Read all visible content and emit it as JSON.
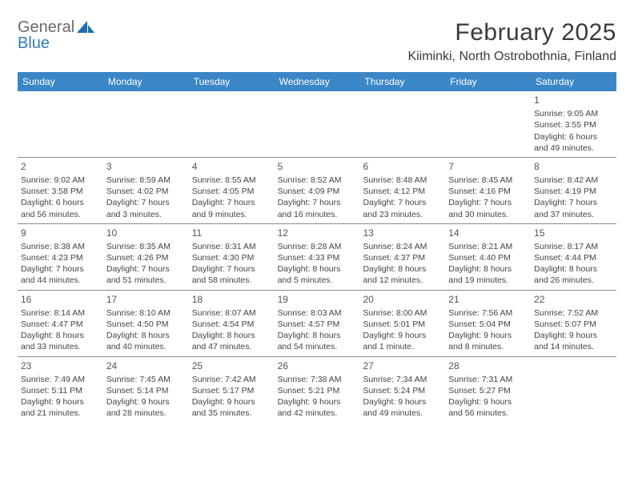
{
  "brand": {
    "word1": "General",
    "word2": "Blue",
    "word1_color": "#6a6a6a",
    "word2_color": "#2f7bbf",
    "sail_color": "#1f6db3"
  },
  "title": "February 2025",
  "location": "Kiiminki, North Ostrobothnia, Finland",
  "colors": {
    "header_bg": "#3b86c6",
    "header_text": "#ffffff",
    "divider": "#8a8a8a",
    "text": "#444444",
    "page_bg": "#ffffff"
  },
  "day_names": [
    "Sunday",
    "Monday",
    "Tuesday",
    "Wednesday",
    "Thursday",
    "Friday",
    "Saturday"
  ],
  "weeks": [
    [
      null,
      null,
      null,
      null,
      null,
      null,
      {
        "n": "1",
        "sr": "9:05 AM",
        "ss": "3:55 PM",
        "dl": "6 hours and 49 minutes."
      }
    ],
    [
      {
        "n": "2",
        "sr": "9:02 AM",
        "ss": "3:58 PM",
        "dl": "6 hours and 56 minutes."
      },
      {
        "n": "3",
        "sr": "8:59 AM",
        "ss": "4:02 PM",
        "dl": "7 hours and 3 minutes."
      },
      {
        "n": "4",
        "sr": "8:55 AM",
        "ss": "4:05 PM",
        "dl": "7 hours and 9 minutes."
      },
      {
        "n": "5",
        "sr": "8:52 AM",
        "ss": "4:09 PM",
        "dl": "7 hours and 16 minutes."
      },
      {
        "n": "6",
        "sr": "8:48 AM",
        "ss": "4:12 PM",
        "dl": "7 hours and 23 minutes."
      },
      {
        "n": "7",
        "sr": "8:45 AM",
        "ss": "4:16 PM",
        "dl": "7 hours and 30 minutes."
      },
      {
        "n": "8",
        "sr": "8:42 AM",
        "ss": "4:19 PM",
        "dl": "7 hours and 37 minutes."
      }
    ],
    [
      {
        "n": "9",
        "sr": "8:38 AM",
        "ss": "4:23 PM",
        "dl": "7 hours and 44 minutes."
      },
      {
        "n": "10",
        "sr": "8:35 AM",
        "ss": "4:26 PM",
        "dl": "7 hours and 51 minutes."
      },
      {
        "n": "11",
        "sr": "8:31 AM",
        "ss": "4:30 PM",
        "dl": "7 hours and 58 minutes."
      },
      {
        "n": "12",
        "sr": "8:28 AM",
        "ss": "4:33 PM",
        "dl": "8 hours and 5 minutes."
      },
      {
        "n": "13",
        "sr": "8:24 AM",
        "ss": "4:37 PM",
        "dl": "8 hours and 12 minutes."
      },
      {
        "n": "14",
        "sr": "8:21 AM",
        "ss": "4:40 PM",
        "dl": "8 hours and 19 minutes."
      },
      {
        "n": "15",
        "sr": "8:17 AM",
        "ss": "4:44 PM",
        "dl": "8 hours and 26 minutes."
      }
    ],
    [
      {
        "n": "16",
        "sr": "8:14 AM",
        "ss": "4:47 PM",
        "dl": "8 hours and 33 minutes."
      },
      {
        "n": "17",
        "sr": "8:10 AM",
        "ss": "4:50 PM",
        "dl": "8 hours and 40 minutes."
      },
      {
        "n": "18",
        "sr": "8:07 AM",
        "ss": "4:54 PM",
        "dl": "8 hours and 47 minutes."
      },
      {
        "n": "19",
        "sr": "8:03 AM",
        "ss": "4:57 PM",
        "dl": "8 hours and 54 minutes."
      },
      {
        "n": "20",
        "sr": "8:00 AM",
        "ss": "5:01 PM",
        "dl": "9 hours and 1 minute."
      },
      {
        "n": "21",
        "sr": "7:56 AM",
        "ss": "5:04 PM",
        "dl": "9 hours and 8 minutes."
      },
      {
        "n": "22",
        "sr": "7:52 AM",
        "ss": "5:07 PM",
        "dl": "9 hours and 14 minutes."
      }
    ],
    [
      {
        "n": "23",
        "sr": "7:49 AM",
        "ss": "5:11 PM",
        "dl": "9 hours and 21 minutes."
      },
      {
        "n": "24",
        "sr": "7:45 AM",
        "ss": "5:14 PM",
        "dl": "9 hours and 28 minutes."
      },
      {
        "n": "25",
        "sr": "7:42 AM",
        "ss": "5:17 PM",
        "dl": "9 hours and 35 minutes."
      },
      {
        "n": "26",
        "sr": "7:38 AM",
        "ss": "5:21 PM",
        "dl": "9 hours and 42 minutes."
      },
      {
        "n": "27",
        "sr": "7:34 AM",
        "ss": "5:24 PM",
        "dl": "9 hours and 49 minutes."
      },
      {
        "n": "28",
        "sr": "7:31 AM",
        "ss": "5:27 PM",
        "dl": "9 hours and 56 minutes."
      },
      null
    ]
  ],
  "labels": {
    "sunrise": "Sunrise: ",
    "sunset": "Sunset: ",
    "daylight": "Daylight: "
  }
}
